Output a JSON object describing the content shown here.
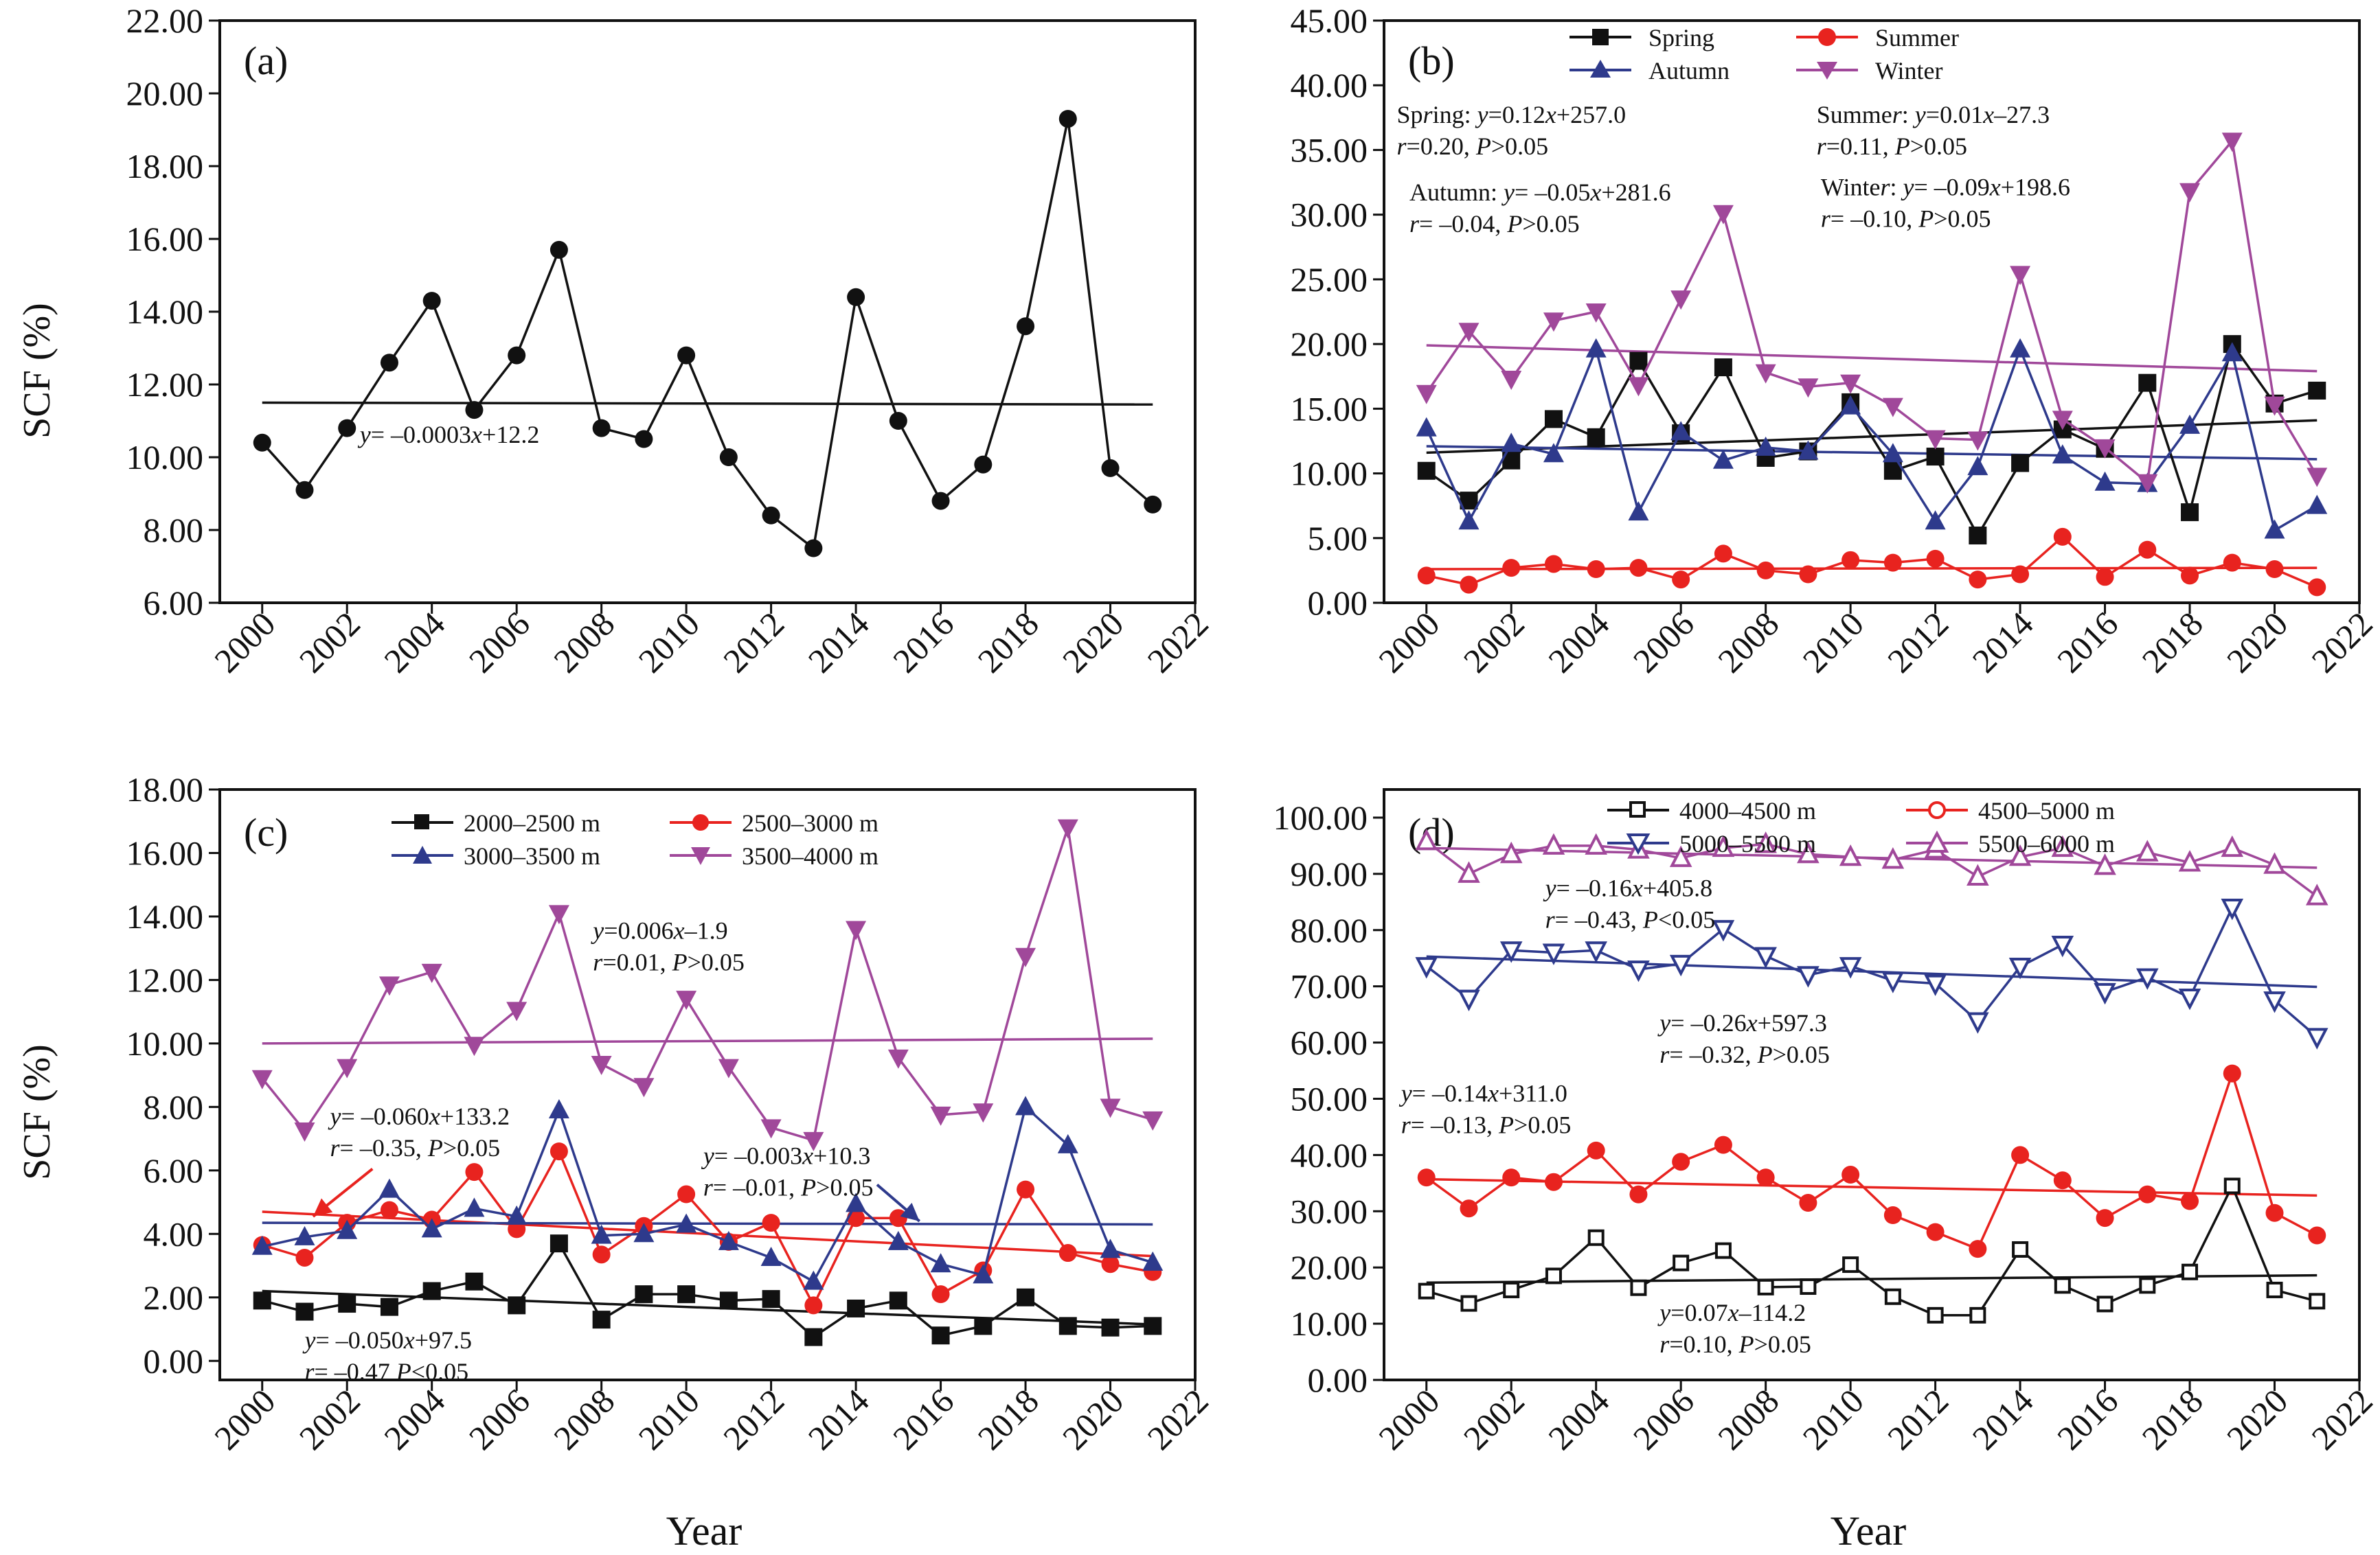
{
  "chart_data": [
    {
      "type": "line",
      "panel": "(a)",
      "ylabel": "SCF (%)",
      "xlabel": "",
      "x": [
        2000,
        2001,
        2002,
        2003,
        2004,
        2005,
        2006,
        2007,
        2008,
        2009,
        2010,
        2011,
        2012,
        2013,
        2014,
        2015,
        2016,
        2017,
        2018,
        2019,
        2020,
        2021
      ],
      "xlim": [
        1999,
        2022
      ],
      "xticks": [
        "2000",
        "2002",
        "2004",
        "2006",
        "2008",
        "2010",
        "2012",
        "2014",
        "2016",
        "2018",
        "2020",
        "2022"
      ],
      "ylim": [
        6,
        22
      ],
      "yticks": [
        "6.00",
        "8.00",
        "10.00",
        "12.00",
        "14.00",
        "16.00",
        "18.00",
        "20.00",
        "22.00"
      ],
      "series": [
        {
          "color": "#111111",
          "marker": "circle",
          "values": [
            10.4,
            9.1,
            10.8,
            12.6,
            14.3,
            11.3,
            12.8,
            15.7,
            10.8,
            10.5,
            12.8,
            10.0,
            8.4,
            7.5,
            14.4,
            11.0,
            8.8,
            9.8,
            13.6,
            19.3,
            9.7,
            8.7
          ]
        }
      ],
      "trends": [
        {
          "color": "#111111",
          "from": [
            2000,
            11.5
          ],
          "to": [
            2021,
            11.45
          ]
        }
      ],
      "annotations": [
        {
          "x": 2002.3,
          "y": 10.4,
          "lines": [
            "y= –0.0003x+12.2"
          ]
        }
      ]
    },
    {
      "type": "line",
      "panel": "(b)",
      "ylabel": "",
      "xlabel": "",
      "x": [
        2000,
        2001,
        2002,
        2003,
        2004,
        2005,
        2006,
        2007,
        2008,
        2009,
        2010,
        2011,
        2012,
        2013,
        2014,
        2015,
        2016,
        2017,
        2018,
        2019,
        2020,
        2021
      ],
      "xlim": [
        1999,
        2022
      ],
      "xticks": [
        "2000",
        "2002",
        "2004",
        "2006",
        "2008",
        "2010",
        "2012",
        "2014",
        "2016",
        "2018",
        "2020",
        "2022"
      ],
      "ylim": [
        0,
        45
      ],
      "yticks": [
        "0.00",
        "5.00",
        "10.00",
        "15.00",
        "20.00",
        "25.00",
        "30.00",
        "35.00",
        "40.00",
        "45.00"
      ],
      "series": [
        {
          "name": "Spring",
          "color": "#111111",
          "marker": "square",
          "values": [
            10.2,
            7.9,
            11.0,
            14.2,
            12.8,
            18.7,
            13.1,
            18.2,
            11.2,
            11.7,
            15.5,
            10.2,
            11.3,
            5.2,
            10.8,
            13.4,
            11.9,
            17.0,
            7.0,
            20.0,
            15.4,
            16.4
          ]
        },
        {
          "name": "Summer",
          "color": "#e8231f",
          "marker": "circle",
          "values": [
            2.1,
            1.4,
            2.7,
            3.0,
            2.6,
            2.7,
            1.8,
            3.8,
            2.5,
            2.2,
            3.3,
            3.1,
            3.4,
            1.8,
            2.2,
            5.1,
            2.0,
            4.1,
            2.1,
            3.1,
            2.6,
            1.2
          ]
        },
        {
          "name": "Autumn",
          "color": "#2e3a8c",
          "marker": "triangle-up",
          "values": [
            13.5,
            6.3,
            12.3,
            11.5,
            19.6,
            7.0,
            13.2,
            11.0,
            12.0,
            11.7,
            15.2,
            11.5,
            6.3,
            10.5,
            19.6,
            11.4,
            9.3,
            9.2,
            13.7,
            19.3,
            5.6,
            7.5
          ]
        },
        {
          "name": "Winter",
          "color": "#a0489a",
          "marker": "triangle-down",
          "values": [
            16.2,
            21.0,
            17.3,
            21.8,
            22.5,
            16.8,
            23.5,
            30.1,
            17.8,
            16.7,
            17.0,
            15.2,
            12.7,
            12.6,
            25.4,
            14.2,
            12.0,
            9.3,
            31.8,
            35.7,
            15.3,
            9.8
          ]
        }
      ],
      "trends": [
        {
          "color": "#111111",
          "from": [
            2000,
            11.6
          ],
          "to": [
            2021,
            14.1
          ]
        },
        {
          "color": "#e8231f",
          "from": [
            2000,
            2.6
          ],
          "to": [
            2021,
            2.7
          ]
        },
        {
          "color": "#2e3a8c",
          "from": [
            2000,
            12.1
          ],
          "to": [
            2021,
            11.1
          ]
        },
        {
          "color": "#a0489a",
          "from": [
            2000,
            19.9
          ],
          "to": [
            2021,
            17.9
          ]
        }
      ],
      "annotations": [
        {
          "x": 1999.3,
          "y": 37.1,
          "lines": [
            "Spring: y=0.12x+257.0",
            "r=0.20, P>0.05"
          ]
        },
        {
          "x": 2009.2,
          "y": 37.1,
          "lines": [
            "Summer: y=0.01x–27.3",
            "r=0.11, P>0.05"
          ]
        },
        {
          "x": 1999.6,
          "y": 31.1,
          "lines": [
            "Autumn: y= –0.05x+281.6",
            "r= –0.04, P>0.05"
          ]
        },
        {
          "x": 2009.3,
          "y": 31.5,
          "lines": [
            "Winter: y= –0.09x+198.6",
            "r= –0.10, P>0.05"
          ]
        }
      ]
    },
    {
      "type": "line",
      "panel": "(c)",
      "ylabel": "SCF (%)",
      "xlabel": "Year",
      "x": [
        2000,
        2001,
        2002,
        2003,
        2004,
        2005,
        2006,
        2007,
        2008,
        2009,
        2010,
        2011,
        2012,
        2013,
        2014,
        2015,
        2016,
        2017,
        2018,
        2019,
        2020,
        2021
      ],
      "xlim": [
        1999,
        2022
      ],
      "xticks": [
        "2000",
        "2002",
        "2004",
        "2006",
        "2008",
        "2010",
        "2012",
        "2014",
        "2016",
        "2018",
        "2020",
        "2022"
      ],
      "ylim": [
        -0.6,
        18
      ],
      "yticks": [
        "0.00",
        "2.00",
        "4.00",
        "6.00",
        "8.00",
        "10.00",
        "12.00",
        "14.00",
        "16.00",
        "18.00"
      ],
      "series": [
        {
          "name": "2000–2500 m",
          "color": "#111111",
          "marker": "square",
          "values": [
            1.9,
            1.55,
            1.8,
            1.7,
            2.2,
            2.5,
            1.75,
            3.7,
            1.3,
            2.1,
            2.1,
            1.9,
            1.95,
            0.75,
            1.65,
            1.9,
            0.8,
            1.1,
            2.0,
            1.1,
            1.05,
            1.1
          ]
        },
        {
          "name": "2500–3000 m",
          "color": "#e8231f",
          "marker": "circle",
          "values": [
            3.65,
            3.25,
            4.35,
            4.75,
            4.45,
            5.95,
            4.15,
            6.6,
            3.35,
            4.25,
            5.25,
            3.75,
            4.35,
            1.75,
            4.5,
            4.5,
            2.1,
            2.85,
            5.4,
            3.4,
            3.05,
            2.8
          ]
        },
        {
          "name": "3000–3500 m",
          "color": "#2e3a8c",
          "marker": "triangle-up",
          "values": [
            3.6,
            3.9,
            4.1,
            5.4,
            4.15,
            4.8,
            4.55,
            7.9,
            3.95,
            4.0,
            4.3,
            3.75,
            3.25,
            2.5,
            4.95,
            3.75,
            3.05,
            2.7,
            8.0,
            6.8,
            3.5,
            3.1
          ]
        },
        {
          "name": "3500–4000 m",
          "color": "#a0489a",
          "marker": "triangle-down",
          "values": [
            8.9,
            7.25,
            9.25,
            11.85,
            12.25,
            9.95,
            11.05,
            14.1,
            9.35,
            8.65,
            11.4,
            9.25,
            7.35,
            6.95,
            13.6,
            9.55,
            7.75,
            7.85,
            12.75,
            16.8,
            8.0,
            7.6
          ]
        }
      ],
      "trends": [
        {
          "color": "#111111",
          "from": [
            2000,
            2.2
          ],
          "to": [
            2021,
            1.15
          ]
        },
        {
          "color": "#e8231f",
          "from": [
            2000,
            4.7
          ],
          "to": [
            2021,
            3.3
          ]
        },
        {
          "color": "#2e3a8c",
          "from": [
            2000,
            4.35
          ],
          "to": [
            2021,
            4.3
          ]
        },
        {
          "color": "#a0489a",
          "from": [
            2000,
            10.0
          ],
          "to": [
            2021,
            10.15
          ]
        }
      ],
      "annotations": [
        {
          "x": 2007.8,
          "y": 13.3,
          "lines": [
            "y=0.006x–1.9",
            "r=0.01, P>0.05"
          ]
        },
        {
          "x": 2001.6,
          "y": 7.45,
          "lines": [
            "y= –0.060x+133.2",
            "r= –0.35, P>0.05"
          ]
        },
        {
          "x": 2010.4,
          "y": 6.2,
          "lines": [
            "y= –0.003x+10.3",
            "r= –0.01, P>0.05"
          ]
        },
        {
          "x": 2001.0,
          "y": 0.4,
          "lines": [
            "y= –0.050x+97.5",
            "r= –0.47  P<0.05"
          ]
        }
      ],
      "arrows": [
        {
          "color": "#e8231f",
          "from": [
            2002.6,
            6.05
          ],
          "to": [
            2001.2,
            4.55
          ]
        },
        {
          "color": "#2e3a8c",
          "from": [
            2014.5,
            5.55
          ],
          "to": [
            2015.5,
            4.4
          ]
        }
      ]
    },
    {
      "type": "line",
      "panel": "(d)",
      "ylabel": "",
      "xlabel": "Year",
      "x": [
        2000,
        2001,
        2002,
        2003,
        2004,
        2005,
        2006,
        2007,
        2008,
        2009,
        2010,
        2011,
        2012,
        2013,
        2014,
        2015,
        2016,
        2017,
        2018,
        2019,
        2020,
        2021
      ],
      "xlim": [
        1999,
        2022
      ],
      "xticks": [
        "2000",
        "2002",
        "2004",
        "2006",
        "2008",
        "2010",
        "2012",
        "2014",
        "2016",
        "2018",
        "2020",
        "2022"
      ],
      "ylim": [
        0,
        105
      ],
      "yticks": [
        "0.00",
        "10.00",
        "20.00",
        "30.00",
        "40.00",
        "50.00",
        "60.00",
        "70.00",
        "80.00",
        "90.00",
        "100.00"
      ],
      "series": [
        {
          "name": "4000–4500 m",
          "color": "#111111",
          "marker": "open-square",
          "values": [
            15.8,
            13.6,
            16.0,
            18.5,
            25.3,
            16.4,
            20.8,
            23.0,
            16.5,
            16.6,
            20.5,
            14.8,
            11.5,
            11.5,
            23.2,
            16.8,
            13.5,
            16.8,
            19.2,
            34.5,
            16.0,
            14.0
          ]
        },
        {
          "name": "4500–5000 m",
          "color": "#e8231f",
          "marker": "circle",
          "values": [
            36.0,
            30.5,
            36.0,
            35.2,
            40.8,
            33.0,
            38.8,
            41.8,
            36.0,
            31.5,
            36.5,
            29.3,
            26.3,
            23.3,
            40.0,
            35.5,
            28.8,
            33.0,
            31.8,
            54.5,
            29.7,
            25.7
          ]
        },
        {
          "name": "5000–5500 m",
          "color": "#2e3a8c",
          "marker": "triangle-down-open",
          "values": [
            73.6,
            67.8,
            76.4,
            76.0,
            76.4,
            73.0,
            74.0,
            80.2,
            75.4,
            72.0,
            73.6,
            71.0,
            70.5,
            63.8,
            73.5,
            77.4,
            69.0,
            71.6,
            68.0,
            84.0,
            67.5,
            61.0
          ]
        },
        {
          "name": "5500–6000 m",
          "color": "#a0489a",
          "marker": "triangle-up-open",
          "values": [
            95.8,
            90.0,
            93.5,
            95.0,
            95.0,
            94.3,
            92.8,
            94.6,
            95.3,
            93.5,
            93.0,
            92.5,
            94.3,
            89.5,
            93.0,
            94.6,
            91.4,
            93.8,
            92.0,
            94.6,
            91.6,
            86.0
          ]
        }
      ],
      "trends": [
        {
          "color": "#111111",
          "from": [
            2000,
            17.3
          ],
          "to": [
            2021,
            18.6
          ]
        },
        {
          "color": "#e8231f",
          "from": [
            2000,
            35.7
          ],
          "to": [
            2021,
            32.8
          ]
        },
        {
          "color": "#2e3a8c",
          "from": [
            2000,
            75.3
          ],
          "to": [
            2021,
            69.9
          ]
        },
        {
          "color": "#a0489a",
          "from": [
            2000,
            94.6
          ],
          "to": [
            2021,
            91.1
          ]
        }
      ],
      "annotations": [
        {
          "x": 2002.8,
          "y": 86.0,
          "lines": [
            "y= –0.16x+405.8",
            "r= –0.43, P<0.05"
          ]
        },
        {
          "x": 2005.5,
          "y": 62.0,
          "lines": [
            "y= –0.26x+597.3",
            "r= –0.32, P>0.05"
          ]
        },
        {
          "x": 1999.4,
          "y": 49.5,
          "lines": [
            "y= –0.14x+311.0",
            "r= –0.13, P>0.05"
          ]
        },
        {
          "x": 2005.5,
          "y": 10.5,
          "lines": [
            "y=0.07x–114.2",
            "r=0.10, P>0.05"
          ]
        }
      ]
    }
  ]
}
